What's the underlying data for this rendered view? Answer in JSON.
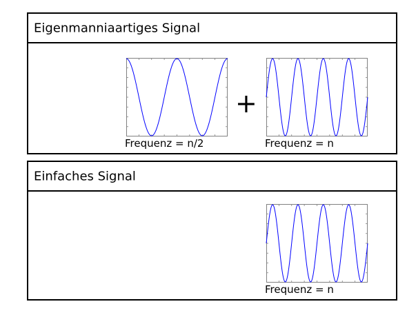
{
  "panels": [
    {
      "title": "Eigenmanniaartiges Signal",
      "plots": [
        {
          "label": "Frequenz = n/2",
          "cycles": 2,
          "phase_deg": 90
        },
        {
          "label": "Frequenz = n",
          "cycles": 4,
          "phase_deg": 0
        }
      ],
      "operator": "+"
    },
    {
      "title": "Einfaches Signal",
      "plots": [
        {
          "label": "Frequenz = n",
          "cycles": 4,
          "phase_deg": 0
        }
      ]
    }
  ],
  "colors": {
    "wave": "#0000ff",
    "axis": "#808080",
    "frame": "#000000"
  }
}
